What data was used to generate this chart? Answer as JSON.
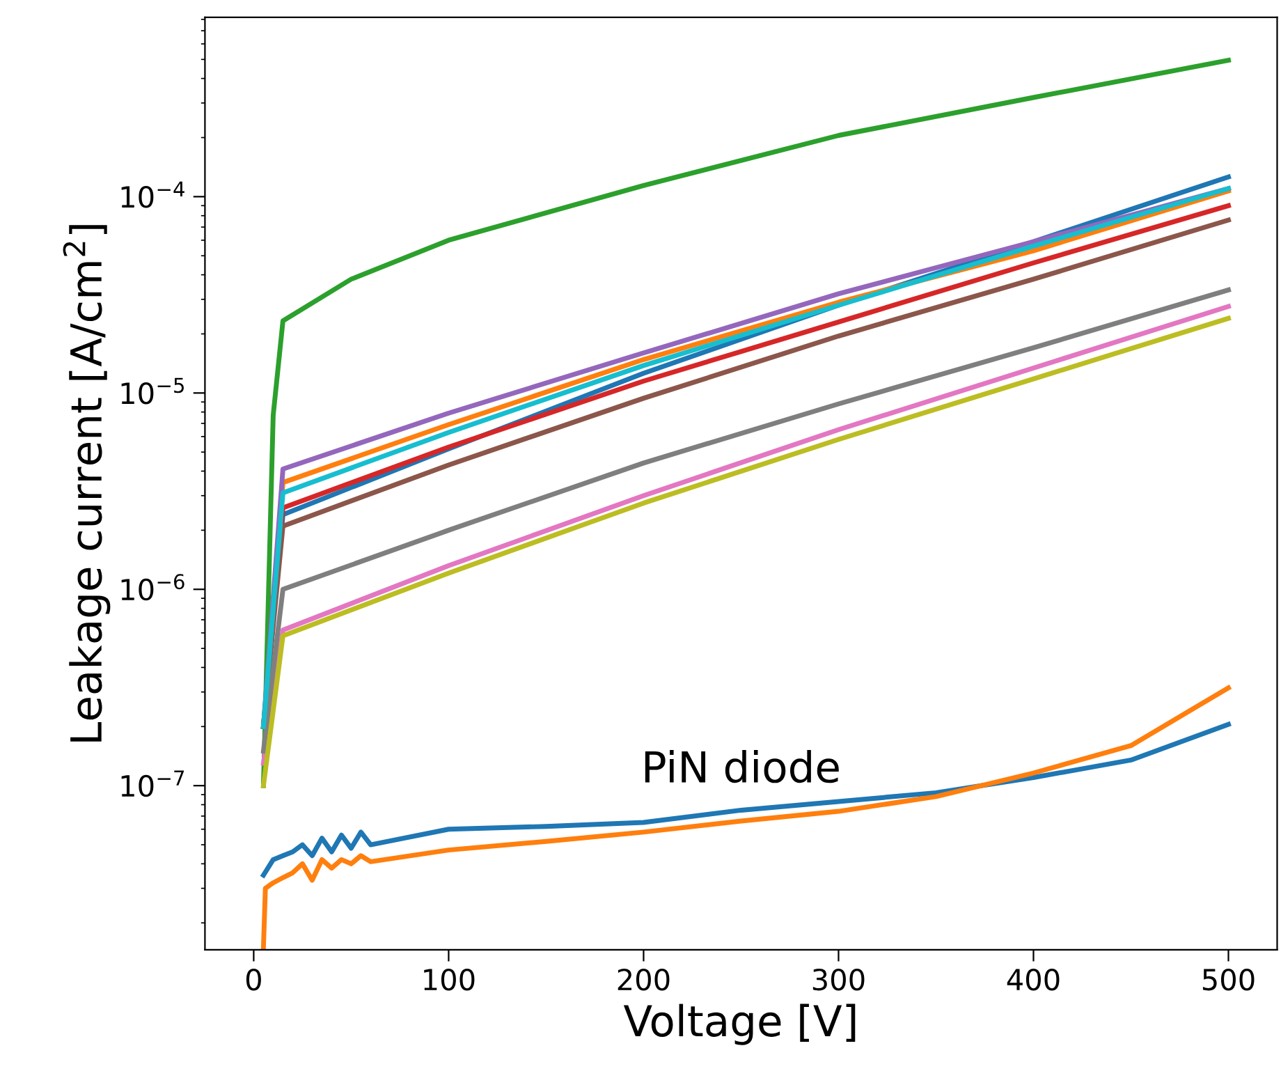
{
  "chart_data": {
    "type": "line",
    "xlabel": "Voltage [V]",
    "ylabel": "Leakage current [A/cm$^{2}$]",
    "log": "y",
    "xlim": [
      -25,
      525
    ],
    "xticks": [
      0,
      100,
      200,
      300,
      400,
      500
    ],
    "ylim": [
      1.46e-08,
      0.00082
    ],
    "yticks": [
      {
        "value": 1e-07,
        "label": "10$^{−7}$"
      },
      {
        "value": 1e-06,
        "label": "10$^{−6}$"
      },
      {
        "value": 1e-05,
        "label": "10$^{−5}$"
      },
      {
        "value": 0.0001,
        "label": "10$^{−4}$"
      }
    ],
    "grid": false,
    "line_style": "solid",
    "marker": "none",
    "annotations": [
      "PiN diode"
    ],
    "series": [
      {
        "color": "#1f77b4",
        "x": [
          5,
          15,
          100,
          200,
          300,
          400,
          500
        ],
        "values": [
          2e-07,
          2.4e-06,
          5.2e-06,
          1.26e-05,
          2.8e-05,
          5.9e-05,
          0.000126
        ]
      },
      {
        "color": "#ff7f0e",
        "x": [
          5,
          15,
          100,
          200,
          300,
          400,
          500
        ],
        "values": [
          2e-07,
          3.5e-06,
          6.9e-06,
          1.48e-05,
          2.9e-05,
          5.3e-05,
          0.000107
        ]
      },
      {
        "color": "#2ca02c",
        "x": [
          5,
          10,
          15,
          50,
          100,
          200,
          300,
          400,
          500
        ],
        "values": [
          1e-07,
          7.7e-06,
          2.33e-05,
          3.8e-05,
          6e-05,
          0.000114,
          0.000205,
          0.00032,
          0.000495
        ]
      },
      {
        "color": "#d62728",
        "x": [
          5,
          15,
          100,
          200,
          300,
          400,
          500
        ],
        "values": [
          2e-07,
          2.6e-06,
          5.3e-06,
          1.15e-05,
          2.3e-05,
          4.6e-05,
          9e-05
        ]
      },
      {
        "color": "#9467bd",
        "x": [
          5,
          15,
          100,
          200,
          300,
          400,
          500
        ],
        "values": [
          2e-07,
          4.1e-06,
          7.9e-06,
          1.6e-05,
          3.2e-05,
          5.9e-05,
          0.00011
        ]
      },
      {
        "color": "#8c564b",
        "x": [
          5,
          15,
          100,
          200,
          300,
          400,
          500
        ],
        "values": [
          2e-07,
          2.1e-06,
          4.3e-06,
          9.4e-06,
          1.95e-05,
          3.8e-05,
          7.6e-05
        ]
      },
      {
        "color": "#e377c2",
        "x": [
          5,
          15,
          100,
          200,
          300,
          400,
          500
        ],
        "values": [
          1.3e-07,
          6.2e-07,
          1.32e-06,
          3e-06,
          6.5e-06,
          1.34e-05,
          2.76e-05
        ]
      },
      {
        "color": "#7f7f7f",
        "x": [
          5,
          15,
          100,
          200,
          300,
          400,
          500
        ],
        "values": [
          1.5e-07,
          1e-06,
          2e-06,
          4.4e-06,
          8.8e-06,
          1.7e-05,
          3.35e-05
        ]
      },
      {
        "color": "#bcbd22",
        "x": [
          5,
          15,
          100,
          200,
          300,
          400,
          500
        ],
        "values": [
          1e-07,
          5.8e-07,
          1.21e-06,
          2.75e-06,
          5.8e-06,
          1.18e-05,
          2.4e-05
        ]
      },
      {
        "color": "#17becf",
        "x": [
          5,
          15,
          100,
          200,
          300,
          400,
          500
        ],
        "values": [
          2e-07,
          3.1e-06,
          6.3e-06,
          1.38e-05,
          2.8e-05,
          5.6e-05,
          0.00011
        ]
      },
      {
        "color": "#1f77b4",
        "x": [
          5,
          10,
          15,
          20,
          25,
          30,
          35,
          40,
          45,
          50,
          55,
          60,
          100,
          150,
          200,
          250,
          300,
          350,
          400,
          450,
          500
        ],
        "values": [
          3.5e-08,
          4.2e-08,
          4.4e-08,
          4.6e-08,
          5e-08,
          4.4e-08,
          5.4e-08,
          4.6e-08,
          5.6e-08,
          4.8e-08,
          5.8e-08,
          5e-08,
          6e-08,
          6.2e-08,
          6.5e-08,
          7.5e-08,
          8.3e-08,
          9.2e-08,
          1.1e-07,
          1.35e-07,
          2.05e-07
        ]
      },
      {
        "color": "#ff7f0e",
        "x": [
          5,
          6,
          10,
          15,
          20,
          25,
          30,
          35,
          40,
          45,
          50,
          55,
          60,
          100,
          150,
          200,
          250,
          300,
          350,
          400,
          450,
          500
        ],
        "values": [
          1.5e-08,
          3e-08,
          3.2e-08,
          3.4e-08,
          3.6e-08,
          4e-08,
          3.3e-08,
          4.2e-08,
          3.8e-08,
          4.2e-08,
          4e-08,
          4.4e-08,
          4.1e-08,
          4.7e-08,
          5.2e-08,
          5.8e-08,
          6.6e-08,
          7.4e-08,
          8.8e-08,
          1.16e-07,
          1.6e-07,
          3.15e-07
        ]
      }
    ]
  }
}
